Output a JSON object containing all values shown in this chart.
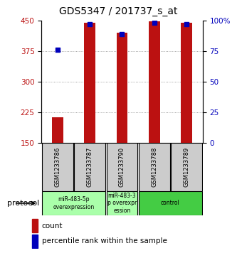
{
  "title": "GDS5347 / 201737_s_at",
  "samples": [
    "GSM1233786",
    "GSM1233787",
    "GSM1233790",
    "GSM1233788",
    "GSM1233789"
  ],
  "counts": [
    213,
    445,
    420,
    448,
    445
  ],
  "percentiles": [
    76,
    97,
    89,
    98,
    97
  ],
  "ylim_left": [
    150,
    450
  ],
  "ylim_right": [
    0,
    100
  ],
  "yticks_left": [
    150,
    225,
    300,
    375,
    450
  ],
  "yticks_right": [
    0,
    25,
    50,
    75,
    100
  ],
  "bar_color": "#bb1111",
  "dot_color": "#0000bb",
  "legend_count_label": "count",
  "legend_percentile_label": "percentile rank within the sample",
  "bg_color": "#ffffff",
  "sample_box_color": "#cccccc",
  "light_green": "#aaffaa",
  "dark_green": "#44cc44",
  "protocol_label": "protocol",
  "title_fontsize": 10,
  "tick_fontsize": 7.5,
  "bar_width": 0.35
}
